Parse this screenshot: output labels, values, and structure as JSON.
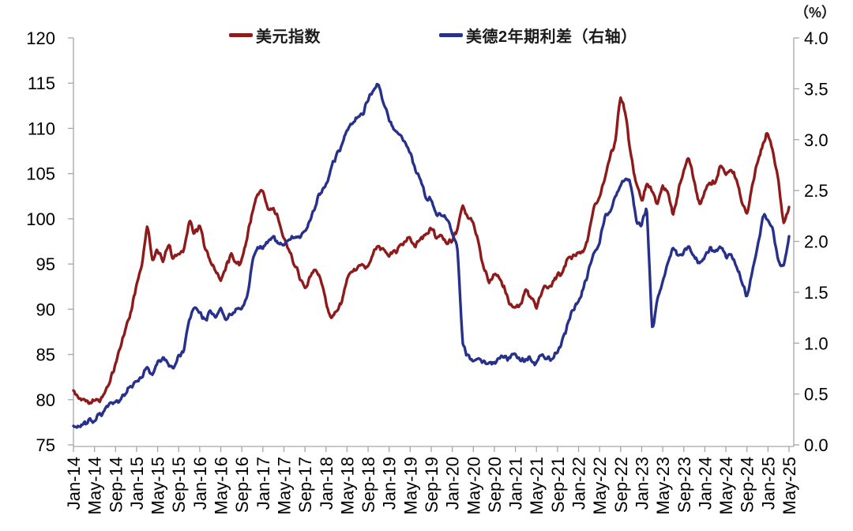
{
  "header": {
    "right_axis_unit": "（%）"
  },
  "legend": [
    {
      "label": "美元指数",
      "color": "#8E1B1B"
    },
    {
      "label": "美德2年期利差（右轴）",
      "color": "#27318B"
    }
  ],
  "chart_data": {
    "type": "line",
    "title": "",
    "x_cadence": "monthly",
    "x_start": "Jan-2014",
    "x_end": "May-2025",
    "x_point_count": 137,
    "x_tick_labels": [
      "Jan-14",
      "May-14",
      "Sep-14",
      "Jan-15",
      "May-15",
      "Sep-15",
      "Jan-16",
      "May-16",
      "Sep-16",
      "Jan-17",
      "May-17",
      "Sep-17",
      "Jan-18",
      "May-18",
      "Sep-18",
      "Jan-19",
      "May-19",
      "Sep-19",
      "Jan-20",
      "May-20",
      "Sep-20",
      "Jan-21",
      "May-21",
      "Sep-21",
      "Jan-22",
      "May-22",
      "Sep-22",
      "Jan-23",
      "May-23",
      "Sep-23",
      "Jan-24",
      "May-24",
      "Sep-24",
      "Jan-25",
      "May-25"
    ],
    "x_tick_step_months": 4,
    "left_axis": {
      "min": 75,
      "max": 120,
      "tick_step": 5,
      "ticks": [
        75,
        80,
        85,
        90,
        95,
        100,
        105,
        110,
        115,
        120
      ]
    },
    "right_axis": {
      "min": 0.0,
      "max": 4.0,
      "tick_step": 0.5,
      "ticks": [
        0.0,
        0.5,
        1.0,
        1.5,
        2.0,
        2.5,
        3.0,
        3.5,
        4.0
      ],
      "unit": "（%）"
    },
    "grid": false,
    "legend_position": "top",
    "series": [
      {
        "key": "usd-index",
        "name": "美元指数",
        "axis": "left",
        "color": "#8E1B1B",
        "values": [
          81.0,
          80.1,
          80.2,
          79.6,
          80.0,
          79.8,
          80.8,
          82.0,
          84.0,
          86.0,
          88.0,
          89.9,
          92.8,
          94.8,
          99.6,
          95.2,
          96.6,
          95.0,
          97.2,
          95.6,
          96.2,
          96.6,
          99.8,
          98.4,
          99.3,
          96.6,
          95.2,
          94.2,
          93.0,
          94.8,
          96.2,
          95.0,
          95.5,
          97.8,
          100.8,
          102.8,
          103.2,
          100.9,
          101.3,
          99.8,
          97.8,
          96.5,
          94.8,
          93.3,
          92.3,
          93.6,
          94.4,
          93.3,
          90.8,
          89.0,
          89.8,
          90.6,
          93.4,
          94.2,
          94.5,
          95.0,
          94.8,
          96.2,
          97.0,
          96.5,
          95.8,
          96.5,
          97.0,
          97.5,
          98.0,
          96.8,
          97.8,
          98.3,
          99.0,
          97.8,
          98.2,
          97.2,
          97.5,
          98.8,
          101.8,
          100.0,
          99.6,
          97.2,
          94.6,
          92.8,
          93.8,
          93.4,
          92.2,
          90.4,
          90.2,
          90.6,
          92.3,
          91.2,
          90.0,
          91.8,
          92.4,
          92.8,
          93.8,
          94.0,
          95.8,
          96.0,
          96.2,
          96.5,
          98.5,
          101.5,
          102.5,
          104.5,
          106.8,
          108.5,
          113.8,
          111.3,
          106.8,
          104.0,
          102.0,
          104.0,
          103.0,
          101.5,
          103.8,
          102.8,
          100.2,
          103.2,
          105.5,
          106.8,
          104.0,
          101.5,
          103.2,
          104.0,
          104.0,
          106.0,
          104.8,
          105.5,
          104.3,
          101.8,
          100.5,
          103.8,
          106.2,
          108.2,
          109.5,
          107.2,
          104.3,
          99.3,
          101.3
        ]
      },
      {
        "key": "us-de-2y-spread",
        "name": "美德2年期利差（右轴）",
        "axis": "right",
        "color": "#27318B",
        "values": [
          0.18,
          0.17,
          0.22,
          0.25,
          0.24,
          0.3,
          0.36,
          0.42,
          0.42,
          0.44,
          0.52,
          0.58,
          0.62,
          0.66,
          0.76,
          0.68,
          0.82,
          0.85,
          0.8,
          0.75,
          0.88,
          0.92,
          1.25,
          1.35,
          1.3,
          1.22,
          1.32,
          1.25,
          1.35,
          1.22,
          1.28,
          1.35,
          1.33,
          1.45,
          1.8,
          1.95,
          1.92,
          2.0,
          2.05,
          1.98,
          1.96,
          2.02,
          2.05,
          2.03,
          2.1,
          2.2,
          2.35,
          2.48,
          2.58,
          2.72,
          2.85,
          2.95,
          3.1,
          3.15,
          3.22,
          3.25,
          3.38,
          3.48,
          3.55,
          3.35,
          3.18,
          3.1,
          3.05,
          2.98,
          2.88,
          2.7,
          2.62,
          2.42,
          2.4,
          2.25,
          2.25,
          2.22,
          2.08,
          1.95,
          0.95,
          0.88,
          0.83,
          0.85,
          0.82,
          0.8,
          0.82,
          0.85,
          0.88,
          0.85,
          0.9,
          0.82,
          0.85,
          0.82,
          0.82,
          0.88,
          0.85,
          0.85,
          0.9,
          1.05,
          1.2,
          1.32,
          1.42,
          1.55,
          1.75,
          1.9,
          1.98,
          2.25,
          2.28,
          2.45,
          2.55,
          2.62,
          2.55,
          2.2,
          2.15,
          2.35,
          1.08,
          1.45,
          1.6,
          1.8,
          1.95,
          1.85,
          1.9,
          1.95,
          1.85,
          1.78,
          1.85,
          1.95,
          1.9,
          1.95,
          1.85,
          1.88,
          1.75,
          1.6,
          1.45,
          1.7,
          1.95,
          2.25,
          2.2,
          2.12,
          1.8,
          1.75,
          2.05
        ]
      }
    ]
  }
}
